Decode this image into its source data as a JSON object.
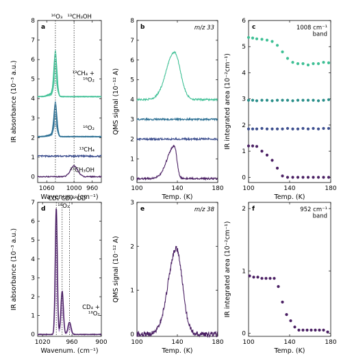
{
  "colors": {
    "teal_light": "#3dbf94",
    "teal_mid": "#2a8f8a",
    "blue_dark": "#2b6f93",
    "navy": "#3d4f8f",
    "purple": "#4a1f63",
    "purple_light": "#a77fc0"
  },
  "chart_data": [
    {
      "panel": "a",
      "type": "line",
      "xlabel": "Wavenum. (cm⁻¹)",
      "ylabel": "IR absorbance (10⁻³ a.u.)",
      "xlim": [
        1080,
        940
      ],
      "ylim": [
        -0.3,
        8
      ],
      "xticks": [
        "1060",
        "1000",
        "960"
      ],
      "yticks": [
        "0",
        "1",
        "2",
        "3",
        "4",
        "5",
        "6",
        "7",
        "8"
      ],
      "top_labels": [
        "¹⁶O₃",
        "¹³CH₃OH"
      ],
      "annotations": [
        "¹³CH₄ +\n¹⁶O₂",
        "¹⁶O₂",
        "¹³CH₄",
        "¹³CH₃OH"
      ],
      "series": [
        {
          "color": "#3dbf94",
          "baseline": 4.1,
          "peak_x": 1041,
          "peak_y": 6.5
        },
        {
          "color": "#2b6f93",
          "baseline": 2.05,
          "peak_x": 1041,
          "peak_y": 3.85
        },
        {
          "color": "#3d4f8f",
          "baseline": 1.05,
          "peak_x": 1041,
          "peak_y": 1.05
        },
        {
          "color": "#4a1f63",
          "baseline": 0.0,
          "peak_x": 1000,
          "peak_y": 0.55
        }
      ]
    },
    {
      "panel": "b",
      "type": "line",
      "title": "m/z 33",
      "xlabel": "Temp. (K)",
      "ylabel": "QMS signal (10⁻¹² A)",
      "xlim": [
        100,
        180
      ],
      "ylim": [
        -0.2,
        8
      ],
      "xticks": [
        "100",
        "140",
        "180"
      ],
      "yticks": [
        "0",
        "1",
        "2",
        "3",
        "4",
        "5",
        "6",
        "7",
        "8"
      ],
      "series": [
        {
          "color": "#3dbf94",
          "baseline": 4.0,
          "peak_x": 137,
          "peak_y": 6.4
        },
        {
          "color": "#2b6f93",
          "baseline": 3.0,
          "peak_x": 137,
          "peak_y": 3.0
        },
        {
          "color": "#3d4f8f",
          "baseline": 2.0,
          "peak_x": 137,
          "peak_y": 2.0
        },
        {
          "color": "#4a1f63",
          "baseline": 0.0,
          "peak_x": 137,
          "peak_y": 1.65
        }
      ]
    },
    {
      "panel": "c",
      "type": "scatter",
      "title": "1008 cm⁻¹\nband",
      "xlabel": "Temp. (K)",
      "ylabel": "IR integrated area (10⁻²cm⁻¹)",
      "xlim": [
        100,
        180
      ],
      "ylim": [
        -0.2,
        6
      ],
      "xticks": [
        "100",
        "140",
        "180"
      ],
      "yticks": [
        "0",
        "1",
        "2",
        "3",
        "4",
        "5",
        "6"
      ],
      "x": [
        100,
        104,
        108,
        113,
        118,
        123,
        128,
        133,
        138,
        143,
        148,
        153,
        158,
        163,
        168,
        173,
        178
      ],
      "series": [
        {
          "color": "#3dbf94",
          "values": [
            5.35,
            5.33,
            5.3,
            5.28,
            5.25,
            5.2,
            5.05,
            4.8,
            4.55,
            4.4,
            4.35,
            4.35,
            4.3,
            4.35,
            4.35,
            4.4,
            4.38
          ]
        },
        {
          "color": "#2a8f8a",
          "values": [
            2.95,
            2.95,
            2.93,
            2.95,
            2.95,
            2.93,
            2.95,
            2.95,
            2.95,
            2.93,
            2.95,
            2.95,
            2.95,
            2.95,
            2.93,
            2.95,
            2.97
          ]
        },
        {
          "color": "#3d4f8f",
          "values": [
            1.85,
            1.85,
            1.85,
            1.87,
            1.85,
            1.85,
            1.85,
            1.85,
            1.87,
            1.85,
            1.85,
            1.87,
            1.85,
            1.87,
            1.85,
            1.87,
            1.87
          ]
        },
        {
          "color": "#4a1f63",
          "values": [
            1.2,
            1.2,
            1.18,
            1.0,
            0.85,
            0.65,
            0.35,
            0.05,
            0.0,
            0.0,
            0.0,
            0.0,
            0.0,
            0.0,
            0.0,
            0.0,
            0.0
          ]
        }
      ]
    },
    {
      "panel": "d",
      "type": "line",
      "xlabel": "Wavenum. (cm⁻¹)",
      "ylabel": "IR absorbance (10⁻³ a.u.)",
      "xlim": [
        1030,
        900
      ],
      "ylim": [
        -0.1,
        7
      ],
      "xticks": [
        "1020",
        "960",
        "900"
      ],
      "yticks": [
        "0",
        "1",
        "2",
        "3",
        "4",
        "5",
        "6",
        "7"
      ],
      "top_labels": [
        "CD₄",
        "¹⁸O₃",
        "CD₃¹⁸OD"
      ],
      "annotations": [
        "CD₄ +\n¹⁸O₂"
      ],
      "peaks": [
        {
          "x": 992,
          "values": [
            6.7,
            6.3,
            5.8,
            5.2,
            4.6,
            4.0,
            3.4,
            2.8,
            2.2
          ]
        },
        {
          "x": 980,
          "values": [
            2.3,
            2.15,
            2.0,
            1.85,
            1.7,
            1.55,
            1.4,
            1.25,
            1.1
          ]
        },
        {
          "x": 965,
          "values": [
            0.65,
            0.6,
            0.55,
            0.5,
            0.45,
            0.4,
            0.35,
            0.3,
            0.25
          ]
        }
      ]
    },
    {
      "panel": "e",
      "type": "line",
      "title": "m/z 38",
      "xlabel": "Temp. (K)",
      "ylabel": "QMS signal (10⁻¹² A)",
      "xlim": [
        100,
        180
      ],
      "ylim": [
        -0.05,
        3
      ],
      "xticks": [
        "100",
        "140",
        "180"
      ],
      "yticks": [
        "0",
        "1",
        "2",
        "3"
      ],
      "series": [
        {
          "color": "#4a1f63",
          "baseline": 0.0,
          "peak_x": 139,
          "peak_y": 1.95
        }
      ]
    },
    {
      "panel": "f",
      "type": "scatter",
      "title": "952 cm⁻¹\nband",
      "xlabel": "Temp. (K)",
      "ylabel": "IR integrated area (10⁻²cm⁻¹)",
      "xlim": [
        100,
        180
      ],
      "ylim": [
        -0.05,
        2.1
      ],
      "xticks": [
        "100",
        "140",
        "180"
      ],
      "yticks": [
        "0",
        "1",
        "2"
      ],
      "x": [
        101,
        105,
        109,
        113,
        117,
        121,
        125,
        129,
        133,
        137,
        141,
        145,
        149,
        153,
        157,
        161,
        165,
        169,
        173,
        177
      ],
      "series": [
        {
          "color": "#4a1f63",
          "values": [
            0.92,
            0.9,
            0.9,
            0.88,
            0.88,
            0.88,
            0.88,
            0.75,
            0.5,
            0.3,
            0.2,
            0.1,
            0.05,
            0.05,
            0.05,
            0.05,
            0.05,
            0.05,
            0.05,
            0.02
          ]
        }
      ]
    }
  ]
}
